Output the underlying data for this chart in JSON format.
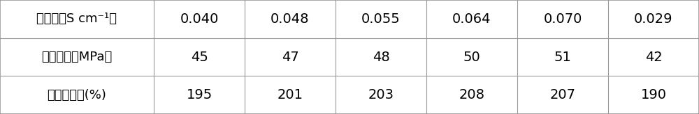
{
  "rows": [
    {
      "label": "电导率（S cm⁻¹）",
      "values": [
        "0.040",
        "0.048",
        "0.055",
        "0.064",
        "0.070",
        "0.029"
      ]
    },
    {
      "label": "拉伸强度（MPa）",
      "values": [
        "45",
        "47",
        "48",
        "50",
        "51",
        "42"
      ]
    },
    {
      "label": "断裂伸长率(%)",
      "values": [
        "195",
        "201",
        "203",
        "208",
        "207",
        "190"
      ]
    }
  ],
  "n_data_cols": 6,
  "background_color": "#ffffff",
  "border_color": "#999999",
  "text_color": "#000000",
  "label_col_weight": 0.22,
  "data_col_weight": 0.13,
  "label_fontsize": 13,
  "value_fontsize": 14,
  "outer_border_lw": 1.2,
  "inner_border_lw": 0.8
}
